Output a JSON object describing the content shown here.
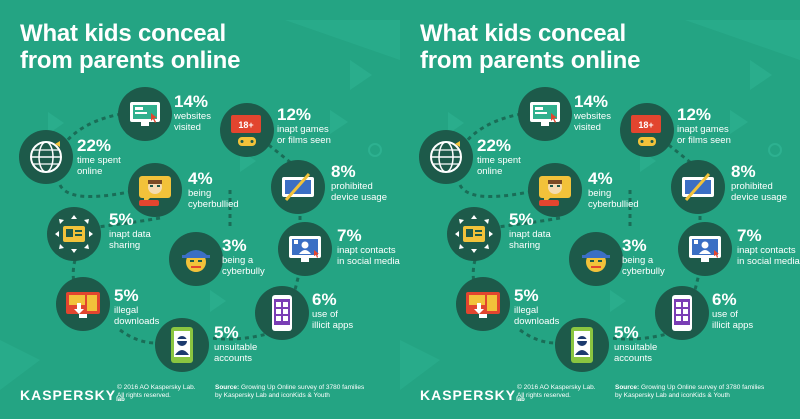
{
  "title": {
    "line1": "What kids conceal",
    "line2": "from parents online"
  },
  "items": [
    {
      "percent": "14%",
      "line1": "websites",
      "line2": "visited",
      "icon": "monitor-icon"
    },
    {
      "percent": "12%",
      "line1": "inapt games",
      "line2": "or films seen",
      "icon": "age-18-gamepad-icon",
      "badge": "18+"
    },
    {
      "percent": "22%",
      "line1": "time spent",
      "line2": "online",
      "icon": "globe-icon"
    },
    {
      "percent": "4%",
      "line1": "being",
      "line2": "cyberbullied",
      "icon": "chat-bubble-face-icon"
    },
    {
      "percent": "8%",
      "line1": "prohibited",
      "line2": "device usage",
      "icon": "tablet-slash-icon"
    },
    {
      "percent": "5%",
      "line1": "inapt data",
      "line2": "sharing",
      "icon": "id-card-arrows-icon"
    },
    {
      "percent": "3%",
      "line1": "being a",
      "line2": "cyberbully",
      "icon": "bully-face-icon"
    },
    {
      "percent": "7%",
      "line1": "inapt contacts",
      "line2": "in social media",
      "icon": "social-profile-icon"
    },
    {
      "percent": "5%",
      "line1": "illegal",
      "line2": "downloads",
      "icon": "download-screen-icon"
    },
    {
      "percent": "6%",
      "line1": "use of",
      "line2": "illicit apps",
      "icon": "phone-apps-icon"
    },
    {
      "percent": "5%",
      "line1": "unsuitable",
      "line2": "accounts",
      "icon": "phone-masked-user-icon"
    }
  ],
  "footer": {
    "logo": "KASPERSKY",
    "logo_sub": "lab",
    "copyright_line1": "© 2016 AO Kaspersky Lab.",
    "copyright_line2": "All rights reserved.",
    "source_label": "Source:",
    "source_line1": " Growing Up Online survey of 3780 families",
    "source_line2": "by Kaspersky Lab and iconKids & Youth"
  },
  "colors": {
    "background": "#24a483",
    "icon_circle": "#1d5a4a",
    "accent_red": "#e2452f",
    "accent_yellow": "#f2c23a"
  }
}
